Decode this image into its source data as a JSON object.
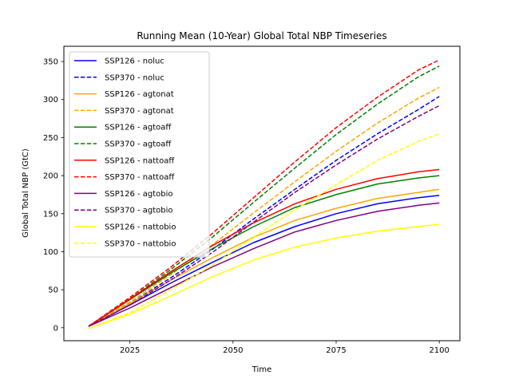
{
  "chart_data": {
    "type": "line",
    "title": "Running Mean (10-Year) Global Total NBP Timeseries",
    "xlabel": "Time",
    "ylabel": "Global Total NBP (GtC)",
    "xlim": [
      2009,
      2105
    ],
    "ylim": [
      -17,
      370
    ],
    "xticks": [
      2025,
      2050,
      2075,
      2100
    ],
    "yticks": [
      0,
      50,
      100,
      150,
      200,
      250,
      300,
      350
    ],
    "grid": false,
    "legend_position": "top-left",
    "x": [
      2015,
      2025,
      2035,
      2045,
      2055,
      2065,
      2075,
      2085,
      2095,
      2100
    ],
    "series": [
      {
        "name": "SSP126 - noluc",
        "color": "#0000ff",
        "style": "solid",
        "values": [
          2,
          30,
          59,
          86,
          112,
          133,
          150,
          163,
          171,
          174
        ]
      },
      {
        "name": "SSP370 - noluc",
        "color": "#0000ff",
        "style": "dashed",
        "values": [
          2,
          32,
          66,
          103,
          143,
          182,
          220,
          255,
          287,
          304
        ]
      },
      {
        "name": "SSP126 - agtonat",
        "color": "#ffa500",
        "style": "solid",
        "values": [
          2,
          32,
          63,
          92,
          119,
          141,
          157,
          170,
          178,
          182
        ]
      },
      {
        "name": "SSP370 - agtonat",
        "color": "#ffa500",
        "style": "dashed",
        "values": [
          2,
          34,
          70,
          109,
          151,
          192,
          232,
          269,
          302,
          316
        ]
      },
      {
        "name": "SSP126 - agtoaff",
        "color": "#008000",
        "style": "solid",
        "values": [
          2,
          37,
          72,
          104,
          133,
          158,
          175,
          189,
          197,
          200
        ]
      },
      {
        "name": "SSP370 - agtoaff",
        "color": "#008000",
        "style": "dashed",
        "values": [
          2,
          38,
          77,
          119,
          165,
          210,
          254,
          294,
          330,
          344
        ]
      },
      {
        "name": "SSP126 - nattoaff",
        "color": "#ff0000",
        "style": "solid",
        "values": [
          2,
          38,
          74,
          108,
          138,
          163,
          182,
          196,
          205,
          208
        ]
      },
      {
        "name": "SSP370 - nattoaff",
        "color": "#ff0000",
        "style": "dashed",
        "values": [
          2,
          40,
          80,
          124,
          171,
          218,
          263,
          303,
          339,
          352
        ]
      },
      {
        "name": "SSP126 - agtobio",
        "color": "#800080",
        "style": "solid",
        "values": [
          2,
          26,
          53,
          80,
          104,
          126,
          141,
          153,
          161,
          164
        ]
      },
      {
        "name": "SSP370 - agtobio",
        "color": "#800080",
        "style": "dashed",
        "values": [
          2,
          30,
          63,
          99,
          139,
          178,
          214,
          248,
          278,
          292
        ]
      },
      {
        "name": "SSP126 - nattobio",
        "color": "#ffff00",
        "style": "solid",
        "values": [
          -1,
          18,
          42,
          67,
          89,
          106,
          118,
          127,
          133,
          136
        ]
      },
      {
        "name": "SSP370 - nattobio",
        "color": "#ffff00",
        "style": "dashed",
        "values": [
          -1,
          20,
          50,
          82,
          119,
          155,
          188,
          220,
          245,
          255
        ]
      }
    ]
  }
}
